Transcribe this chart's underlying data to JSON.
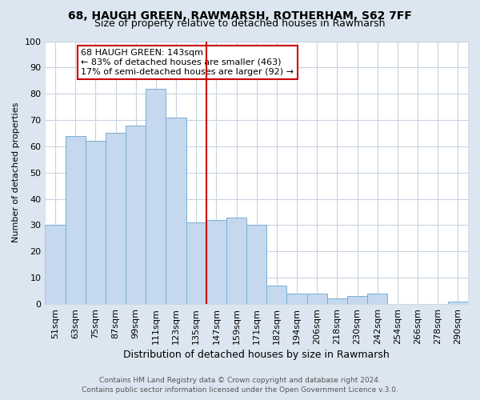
{
  "title": "68, HAUGH GREEN, RAWMARSH, ROTHERHAM, S62 7FF",
  "subtitle": "Size of property relative to detached houses in Rawmarsh",
  "xlabel": "Distribution of detached houses by size in Rawmarsh",
  "ylabel": "Number of detached properties",
  "bar_labels": [
    "51sqm",
    "63sqm",
    "75sqm",
    "87sqm",
    "99sqm",
    "111sqm",
    "123sqm",
    "135sqm",
    "147sqm",
    "159sqm",
    "171sqm",
    "182sqm",
    "194sqm",
    "206sqm",
    "218sqm",
    "230sqm",
    "242sqm",
    "254sqm",
    "266sqm",
    "278sqm",
    "290sqm"
  ],
  "bar_values": [
    30,
    64,
    62,
    65,
    68,
    82,
    71,
    31,
    32,
    33,
    30,
    7,
    4,
    4,
    2,
    3,
    4,
    0,
    0,
    0,
    1
  ],
  "bar_color": "#c5d8ed",
  "bar_edge_color": "#7aaed6",
  "vline_color": "#cc0000",
  "annotation_title": "68 HAUGH GREEN: 143sqm",
  "annotation_line1": "← 83% of detached houses are smaller (463)",
  "annotation_line2": "17% of semi-detached houses are larger (92) →",
  "annotation_box_facecolor": "#ffffff",
  "annotation_box_edgecolor": "#cc0000",
  "ylim": [
    0,
    100
  ],
  "yticks": [
    0,
    10,
    20,
    30,
    40,
    50,
    60,
    70,
    80,
    90,
    100
  ],
  "footer1": "Contains HM Land Registry data © Crown copyright and database right 2024.",
  "footer2": "Contains public sector information licensed under the Open Government Licence v.3.0.",
  "fig_bg_color": "#dce6f0",
  "plot_bg_color": "#ffffff",
  "grid_color": "#c8d4e0",
  "title_fontsize": 10,
  "subtitle_fontsize": 9,
  "ylabel_fontsize": 8,
  "xlabel_fontsize": 9,
  "tick_fontsize": 8,
  "ann_fontsize": 8,
  "footer_fontsize": 6.5
}
